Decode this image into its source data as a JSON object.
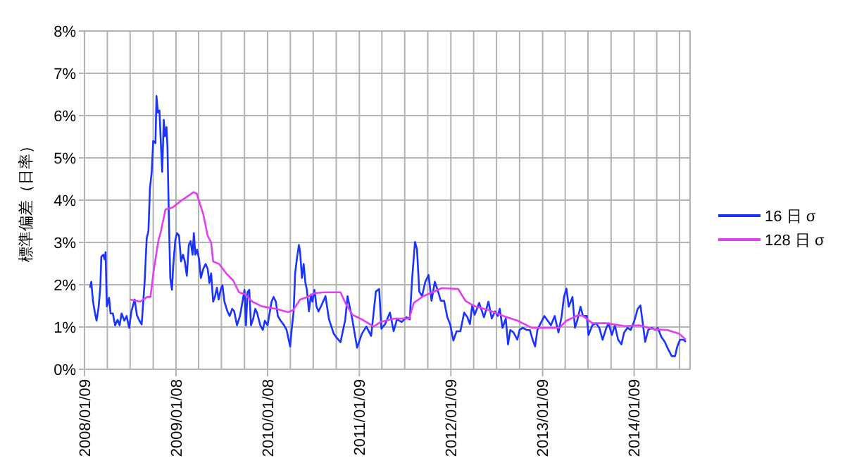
{
  "chart_data": {
    "type": "line",
    "ylabel": "標準偏差（日率）",
    "xlim": [
      "2008-01-09",
      "2014-08-20"
    ],
    "xticks": [
      {
        "value": "2008-01-09",
        "label": "2008/01/09"
      },
      {
        "value": "2008-04-09",
        "label": null
      },
      {
        "value": "2008-07-09",
        "label": null
      },
      {
        "value": "2008-10-09",
        "label": null
      },
      {
        "value": "2009-01-08",
        "label": "2009/01/08"
      },
      {
        "value": "2009-04-08",
        "label": null
      },
      {
        "value": "2009-07-08",
        "label": null
      },
      {
        "value": "2009-10-08",
        "label": null
      },
      {
        "value": "2010-01-08",
        "label": "2010/01/08"
      },
      {
        "value": "2010-04-09",
        "label": null
      },
      {
        "value": "2010-07-09",
        "label": null
      },
      {
        "value": "2010-10-09",
        "label": null
      },
      {
        "value": "2011-01-09",
        "label": "2011/01/09"
      },
      {
        "value": "2011-04-09",
        "label": null
      },
      {
        "value": "2011-07-09",
        "label": null
      },
      {
        "value": "2011-10-09",
        "label": null
      },
      {
        "value": "2012-01-09",
        "label": "2012/01/09"
      },
      {
        "value": "2012-04-09",
        "label": null
      },
      {
        "value": "2012-07-09",
        "label": null
      },
      {
        "value": "2012-10-09",
        "label": null
      },
      {
        "value": "2013-01-09",
        "label": "2013/01/09"
      },
      {
        "value": "2013-04-09",
        "label": null
      },
      {
        "value": "2013-07-09",
        "label": null
      },
      {
        "value": "2013-10-09",
        "label": null
      },
      {
        "value": "2014-01-09",
        "label": "2014/01/09"
      },
      {
        "value": "2014-04-09",
        "label": null
      },
      {
        "value": "2014-07-09",
        "label": null
      }
    ],
    "ylim": [
      0,
      8
    ],
    "yticks": [
      {
        "value": 0,
        "label": "0%"
      },
      {
        "value": 1,
        "label": "1%"
      },
      {
        "value": 2,
        "label": "2%"
      },
      {
        "value": 3,
        "label": "3%"
      },
      {
        "value": 4,
        "label": "4%"
      },
      {
        "value": 5,
        "label": "5%"
      },
      {
        "value": 6,
        "label": "6%"
      },
      {
        "value": 7,
        "label": "7%"
      },
      {
        "value": 8,
        "label": "8%"
      }
    ],
    "grid": true,
    "legend": "right",
    "marker": "none",
    "line_style": "solid",
    "series": [
      {
        "name": "16 日 σ",
        "color": "#1a33ff",
        "x": [
          "2008-01-31",
          "2008-02-05",
          "2008-02-12",
          "2008-02-20",
          "2008-02-26",
          "2008-03-05",
          "2008-03-12",
          "2008-03-16",
          "2008-03-24",
          "2008-03-29",
          "2008-04-02",
          "2008-04-07",
          "2008-04-16",
          "2008-04-22",
          "2008-05-01",
          "2008-05-10",
          "2008-05-20",
          "2008-05-28",
          "2008-06-05",
          "2008-06-16",
          "2008-06-25",
          "2008-07-05",
          "2008-07-14",
          "2008-07-27",
          "2008-08-05",
          "2008-08-15",
          "2008-08-24",
          "2008-09-05",
          "2008-09-13",
          "2008-09-20",
          "2008-09-26",
          "2008-10-03",
          "2008-10-09",
          "2008-10-18",
          "2008-10-22",
          "2008-10-28",
          "2008-11-03",
          "2008-11-08",
          "2008-11-14",
          "2008-11-20",
          "2008-11-25",
          "2008-12-01",
          "2008-12-05",
          "2008-12-10",
          "2008-12-16",
          "2008-12-23",
          "2008-12-27",
          "2009-01-05",
          "2009-01-12",
          "2009-01-20",
          "2009-01-28",
          "2009-02-05",
          "2009-02-12",
          "2009-02-20",
          "2009-02-28",
          "2009-03-07",
          "2009-03-15",
          "2009-03-20",
          "2009-03-26",
          "2009-04-02",
          "2009-04-10",
          "2009-04-17",
          "2009-04-27",
          "2009-05-06",
          "2009-05-14",
          "2009-05-21",
          "2009-05-28",
          "2009-06-05",
          "2009-06-12",
          "2009-06-20",
          "2009-06-27",
          "2009-07-05",
          "2009-07-12",
          "2009-07-20",
          "2009-08-01",
          "2009-08-10",
          "2009-08-20",
          "2009-08-28",
          "2009-09-08",
          "2009-09-20",
          "2009-09-30",
          "2009-10-08",
          "2009-10-14",
          "2009-10-20",
          "2009-10-27",
          "2009-11-03",
          "2009-11-12",
          "2009-11-20",
          "2009-11-28",
          "2009-12-10",
          "2009-12-20",
          "2009-12-28",
          "2010-01-08",
          "2010-01-16",
          "2010-01-24",
          "2010-02-01",
          "2010-02-10",
          "2010-02-18",
          "2010-03-01",
          "2010-03-15",
          "2010-03-25",
          "2010-04-04",
          "2010-04-08",
          "2010-04-14",
          "2010-04-22",
          "2010-04-28",
          "2010-05-06",
          "2010-05-13",
          "2010-05-18",
          "2010-05-25",
          "2010-06-01",
          "2010-06-08",
          "2010-06-14",
          "2010-06-22",
          "2010-06-30",
          "2010-07-06",
          "2010-07-14",
          "2010-07-22",
          "2010-07-30",
          "2010-08-10",
          "2010-08-27",
          "2010-09-10",
          "2010-09-29",
          "2010-10-13",
          "2010-10-26",
          "2010-11-14",
          "2010-11-23",
          "2010-12-12",
          "2010-12-31",
          "2011-01-19",
          "2011-02-06",
          "2011-02-25",
          "2011-03-16",
          "2011-03-29",
          "2011-04-07",
          "2011-04-22",
          "2011-05-11",
          "2011-05-26",
          "2011-06-08",
          "2011-06-27",
          "2011-07-16",
          "2011-07-29",
          "2011-08-08",
          "2011-08-19",
          "2011-08-27",
          "2011-09-05",
          "2011-09-16",
          "2011-09-29",
          "2011-10-12",
          "2011-10-24",
          "2011-11-06",
          "2011-11-19",
          "2011-11-30",
          "2011-12-13",
          "2011-12-26",
          "2012-01-06",
          "2012-01-19",
          "2012-02-01",
          "2012-02-16",
          "2012-03-02",
          "2012-03-15",
          "2012-03-25",
          "2012-04-03",
          "2012-04-13",
          "2012-05-01",
          "2012-05-20",
          "2012-06-07",
          "2012-06-20",
          "2012-07-03",
          "2012-07-14",
          "2012-07-22",
          "2012-08-02",
          "2012-08-15",
          "2012-08-24",
          "2012-09-02",
          "2012-09-15",
          "2012-09-30",
          "2012-10-09",
          "2012-10-22",
          "2012-11-06",
          "2012-11-19",
          "2012-11-30",
          "2012-12-10",
          "2012-12-19",
          "2013-01-01",
          "2013-01-16",
          "2013-01-29",
          "2013-02-11",
          "2013-02-26",
          "2013-03-13",
          "2013-03-26",
          "2013-04-04",
          "2013-04-14",
          "2013-04-23",
          "2013-05-08",
          "2013-05-18",
          "2013-05-27",
          "2013-06-09",
          "2013-06-19",
          "2013-07-04",
          "2013-07-11",
          "2013-07-26",
          "2013-08-10",
          "2013-08-23",
          "2013-09-05",
          "2013-09-20",
          "2013-09-29",
          "2013-10-12",
          "2013-10-24",
          "2013-11-06",
          "2013-11-19",
          "2013-11-30",
          "2013-12-13",
          "2013-12-26",
          "2014-01-10",
          "2014-01-23",
          "2014-02-03",
          "2014-02-11",
          "2014-02-22",
          "2014-03-06",
          "2014-03-20",
          "2014-04-04",
          "2014-04-13",
          "2014-04-28",
          "2014-05-11",
          "2014-05-24",
          "2014-06-08",
          "2014-06-21",
          "2014-06-30",
          "2014-07-11",
          "2014-07-25",
          "2014-08-03"
        ],
        "values": [
          1.93,
          2.07,
          1.6,
          1.32,
          1.15,
          1.46,
          1.93,
          2.66,
          2.71,
          2.6,
          2.77,
          1.49,
          1.69,
          1.32,
          1.32,
          1.04,
          1.17,
          1.04,
          1.32,
          1.15,
          1.26,
          0.98,
          1.37,
          1.65,
          1.28,
          1.15,
          1.06,
          2.08,
          3.1,
          3.27,
          4.28,
          4.67,
          5.4,
          5.35,
          6.46,
          6.07,
          6.12,
          5.4,
          4.67,
          5.9,
          5.51,
          5.73,
          5.23,
          3.72,
          2.16,
          1.88,
          2.38,
          3.05,
          3.22,
          3.16,
          2.55,
          2.71,
          2.55,
          2.21,
          2.94,
          3.03,
          2.71,
          3.22,
          2.71,
          2.83,
          2.6,
          2.16,
          2.38,
          2.49,
          2.38,
          2.04,
          2.27,
          1.6,
          1.71,
          1.93,
          1.65,
          1.88,
          1.99,
          1.6,
          1.37,
          1.26,
          1.43,
          1.37,
          1.04,
          1.26,
          1.6,
          1.88,
          1.04,
          1.82,
          1.88,
          1.04,
          1.2,
          1.43,
          1.32,
          1.04,
          0.93,
          1.15,
          1.04,
          1.32,
          1.6,
          1.71,
          1.6,
          1.26,
          1.15,
          1.04,
          0.93,
          0.65,
          0.54,
          0.93,
          1.37,
          2.27,
          2.66,
          2.94,
          2.77,
          2.16,
          2.49,
          2.04,
          1.88,
          1.37,
          1.77,
          1.6,
          1.88,
          1.49,
          1.37,
          1.5,
          1.73,
          1.18,
          0.84,
          0.73,
          0.64,
          1.18,
          1.73,
          1.18,
          0.51,
          0.84,
          1.01,
          0.79,
          1.84,
          1.9,
          0.96,
          1.07,
          1.34,
          0.9,
          1.18,
          1.12,
          1.23,
          1.18,
          2.18,
          3.01,
          2.84,
          1.84,
          1.73,
          2.07,
          2.23,
          1.62,
          2.07,
          1.84,
          1.62,
          1.62,
          1.23,
          1.07,
          0.68,
          0.9,
          0.9,
          1.34,
          1.23,
          1.07,
          1.51,
          1.29,
          1.57,
          1.23,
          1.6,
          1.2,
          1.37,
          1.26,
          1.43,
          0.98,
          1.2,
          0.59,
          0.93,
          0.87,
          0.7,
          0.93,
          0.98,
          0.93,
          0.93,
          0.7,
          0.54,
          0.93,
          1.09,
          1.26,
          1.15,
          1.04,
          1.26,
          0.87,
          1.26,
          1.71,
          1.91,
          1.48,
          1.71,
          0.98,
          1.15,
          1.48,
          1.26,
          1.26,
          0.81,
          1.04,
          1.09,
          0.98,
          0.7,
          0.98,
          1.09,
          0.81,
          1.04,
          0.7,
          0.59,
          0.87,
          0.98,
          0.93,
          1.15,
          1.43,
          1.51,
          1.15,
          0.65,
          0.93,
          0.98,
          0.93,
          0.98,
          0.76,
          0.65,
          0.48,
          0.31,
          0.31,
          0.54,
          0.7,
          0.7,
          0.65
        ]
      },
      {
        "name": "128 日 σ",
        "color": "#e040f0",
        "x": [
          "2008-07-09",
          "2008-08-18",
          "2008-09-15",
          "2008-09-28",
          "2008-10-12",
          "2008-10-30",
          "2008-11-09",
          "2008-11-27",
          "2008-12-26",
          "2009-01-31",
          "2009-02-28",
          "2009-03-19",
          "2009-04-01",
          "2009-04-12",
          "2009-04-27",
          "2009-05-14",
          "2009-05-28",
          "2009-06-05",
          "2009-06-29",
          "2009-07-27",
          "2009-08-24",
          "2009-09-16",
          "2009-10-11",
          "2009-11-08",
          "2009-12-16",
          "2010-02-11",
          "2010-03-31",
          "2010-04-20",
          "2010-05-18",
          "2010-06-16",
          "2010-07-14",
          "2010-08-23",
          "2010-10-26",
          "2010-11-14",
          "2010-12-12",
          "2011-01-19",
          "2011-03-07",
          "2011-04-04",
          "2011-05-30",
          "2011-07-27",
          "2011-08-14",
          "2011-09-21",
          "2011-10-28",
          "2011-12-04",
          "2012-02-07",
          "2012-03-07",
          "2012-04-13",
          "2012-06-08",
          "2012-08-06",
          "2012-10-01",
          "2012-11-27",
          "2013-01-22",
          "2013-03-17",
          "2013-04-14",
          "2013-05-31",
          "2013-06-19",
          "2013-07-26",
          "2013-09-20",
          "2013-12-04",
          "2014-01-29",
          "2014-03-26",
          "2014-05-21",
          "2014-07-08",
          "2014-08-03"
        ],
        "values": [
          1.65,
          1.6,
          1.71,
          1.71,
          2.38,
          3.05,
          3.27,
          3.78,
          3.83,
          4.0,
          4.11,
          4.19,
          4.15,
          3.94,
          3.66,
          3.16,
          3.0,
          2.55,
          2.49,
          2.27,
          2.1,
          1.82,
          1.77,
          1.6,
          1.49,
          1.43,
          1.35,
          1.4,
          1.65,
          1.71,
          1.8,
          1.82,
          1.82,
          1.57,
          1.29,
          1.18,
          1.01,
          1.12,
          1.2,
          1.2,
          1.57,
          1.73,
          1.82,
          1.92,
          1.9,
          1.62,
          1.49,
          1.4,
          1.26,
          1.15,
          0.98,
          0.98,
          0.98,
          1.15,
          1.28,
          1.26,
          1.09,
          1.09,
          1.02,
          1.04,
          0.95,
          0.93,
          0.84,
          0.7
        ]
      }
    ]
  }
}
